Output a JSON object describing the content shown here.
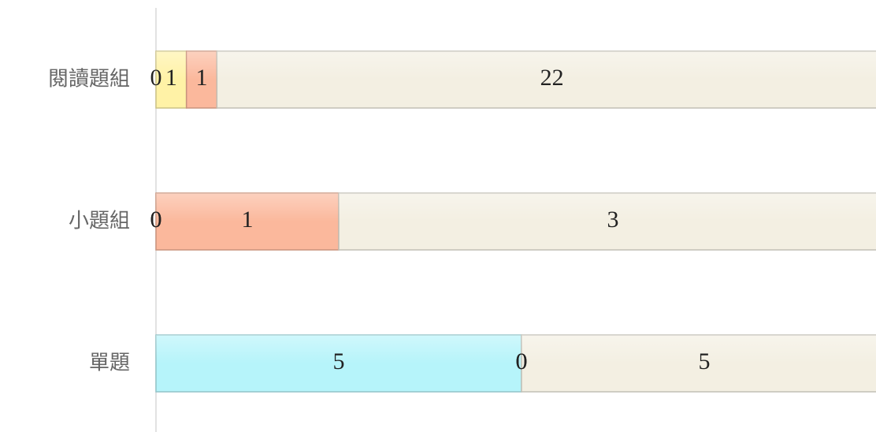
{
  "chart_data": {
    "type": "bar",
    "orientation": "horizontal",
    "stack": "percent",
    "categories": [
      "閱讀題組",
      "小題組",
      "單題"
    ],
    "series": [
      {
        "color": "#b6f4fa",
        "values": [
          0,
          0,
          5
        ]
      },
      {
        "color": "#fff2a6",
        "values": [
          1,
          0,
          0
        ]
      },
      {
        "color": "#fbb89c",
        "values": [
          1,
          1,
          0
        ]
      },
      {
        "color": "#f3efe2",
        "values": [
          22,
          3,
          5
        ]
      }
    ]
  }
}
